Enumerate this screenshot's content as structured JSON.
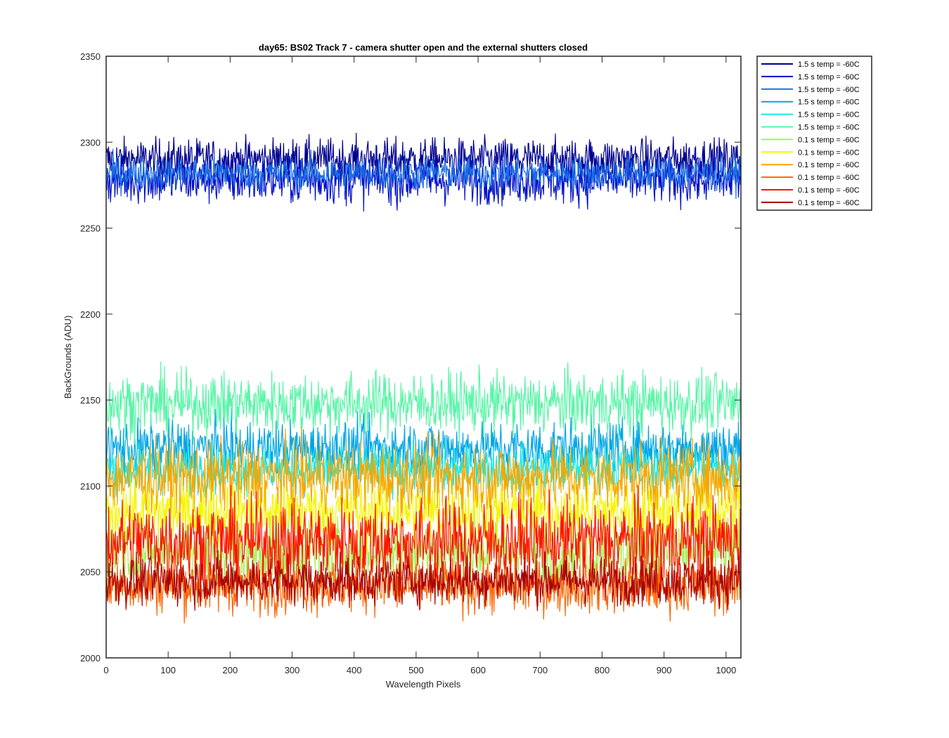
{
  "chart_data": {
    "type": "line",
    "title": "day65: BS02  Track 7 - camera shutter open and the external shutters closed",
    "xlabel": "Wavelength Pixels",
    "ylabel": "BackGrounds (ADU)",
    "xlim": [
      0,
      1024
    ],
    "ylim": [
      2000,
      2350
    ],
    "xticks": [
      0,
      100,
      200,
      300,
      400,
      500,
      600,
      700,
      800,
      900,
      1000
    ],
    "yticks": [
      2000,
      2050,
      2100,
      2150,
      2200,
      2250,
      2300,
      2350
    ],
    "grid": false,
    "legend_position": "outside-top-right",
    "samples_per_series": 1024,
    "series": [
      {
        "name": "1.5 s temp = -60C",
        "color": "#00008f",
        "mean": 2290,
        "spread": 6
      },
      {
        "name": "1.5 s temp = -60C",
        "color": "#0010c8",
        "mean": 2278,
        "spread": 7
      },
      {
        "name": "1.5 s temp = -60C",
        "color": "#1a6fe6",
        "mean": 2282,
        "spread": 5
      },
      {
        "name": "1.5 s temp = -60C",
        "color": "#00a5e6",
        "mean": 2122,
        "spread": 8
      },
      {
        "name": "1.5 s temp = -60C",
        "color": "#1ae6e6",
        "mean": 2110,
        "spread": 7
      },
      {
        "name": "1.5 s temp = -60C",
        "color": "#5af5a8",
        "mean": 2148,
        "spread": 9
      },
      {
        "name": "0.1 s temp = -60C",
        "color": "#a8f05a",
        "mean": 2062,
        "spread": 10
      },
      {
        "name": "0.1 s temp = -60C",
        "color": "#f5f500",
        "mean": 2085,
        "spread": 10
      },
      {
        "name": "0.1 s temp = -60C",
        "color": "#f5a800",
        "mean": 2105,
        "spread": 10
      },
      {
        "name": "0.1 s temp = -60C",
        "color": "#ff6400",
        "mean": 2042,
        "spread": 8
      },
      {
        "name": "0.1 s temp = -60C",
        "color": "#ff1400",
        "mean": 2068,
        "spread": 12
      },
      {
        "name": "0.1 s temp = -60C",
        "color": "#aa0000",
        "mean": 2045,
        "spread": 7
      }
    ]
  }
}
